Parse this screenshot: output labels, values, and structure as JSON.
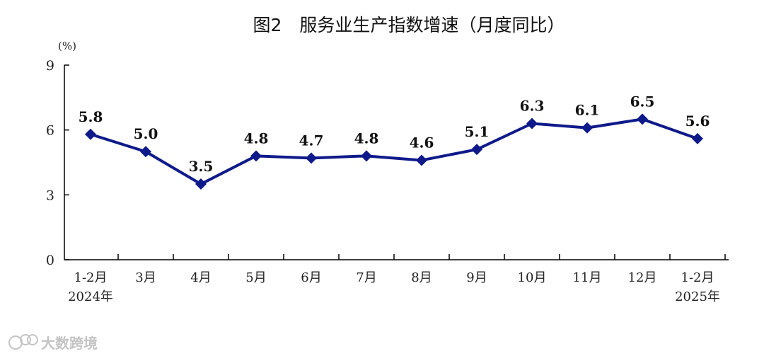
{
  "chart_data": {
    "type": "line",
    "title": "图2　服务业生产指数增速（月度同比）",
    "unit": "(%)",
    "categories": [
      [
        "1-2月",
        "2024年"
      ],
      [
        "3月"
      ],
      [
        "4月"
      ],
      [
        "5月"
      ],
      [
        "6月"
      ],
      [
        "7月"
      ],
      [
        "8月"
      ],
      [
        "9月"
      ],
      [
        "10月"
      ],
      [
        "11月"
      ],
      [
        "12月"
      ],
      [
        "1-2月",
        "2025年"
      ]
    ],
    "values": [
      5.8,
      5.0,
      3.5,
      4.8,
      4.7,
      4.8,
      4.6,
      5.1,
      6.3,
      6.1,
      6.5,
      5.6
    ],
    "value_labels": [
      "5.8",
      "5.0",
      "3.5",
      "4.8",
      "4.7",
      "4.8",
      "4.6",
      "5.1",
      "6.3",
      "6.1",
      "6.5",
      "5.6"
    ],
    "ylim": [
      0,
      9
    ],
    "yticks": [
      "0",
      "3",
      "6",
      "9"
    ],
    "grid": false,
    "legend": "none",
    "line_color": "#0f1a8a",
    "marker": "diamond"
  },
  "watermark": {
    "icon": "big-data-cross-border-logo-icon",
    "text": "大数跨境"
  }
}
